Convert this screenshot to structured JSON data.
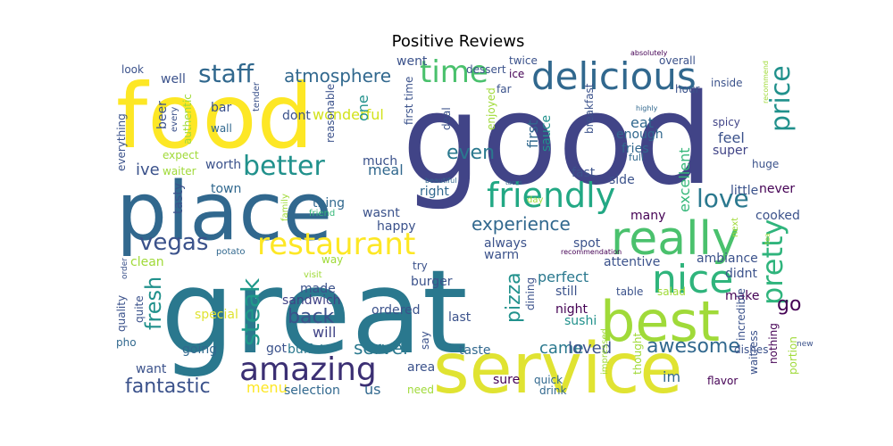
{
  "chart_data": {
    "type": "wordcloud",
    "title": "Positive Reviews",
    "words": [
      {
        "text": "good",
        "color": "#414487"
      },
      {
        "text": "great",
        "color": "#2a788e"
      },
      {
        "text": "food",
        "color": "#fde725"
      },
      {
        "text": "place",
        "color": "#31688e"
      },
      {
        "text": "service",
        "color": "#e0e332"
      },
      {
        "text": "best",
        "color": "#a0da39"
      },
      {
        "text": "really",
        "color": "#4ac16d"
      },
      {
        "text": "delicious",
        "color": "#31688e"
      },
      {
        "text": "friendly",
        "color": "#22a884"
      },
      {
        "text": "amazing",
        "color": "#3b2f73"
      },
      {
        "text": "restaurant",
        "color": "#fde725"
      },
      {
        "text": "time",
        "color": "#4ac16d"
      },
      {
        "text": "nice",
        "color": "#2fb47c"
      },
      {
        "text": "pretty",
        "color": "#2fb47c"
      },
      {
        "text": "price",
        "color": "#21918c"
      },
      {
        "text": "better",
        "color": "#21918c"
      },
      {
        "text": "staff",
        "color": "#31688e"
      },
      {
        "text": "fresh",
        "color": "#21918c"
      },
      {
        "text": "steak",
        "color": "#1f998a"
      },
      {
        "text": "vegas",
        "color": "#3b528b"
      },
      {
        "text": "love",
        "color": "#2a788e"
      },
      {
        "text": "experience",
        "color": "#31688e"
      },
      {
        "text": "fantastic",
        "color": "#3b528b"
      },
      {
        "text": "awesome",
        "color": "#31688e"
      },
      {
        "text": "even",
        "color": "#2a788e"
      },
      {
        "text": "back",
        "color": "#3b528b"
      },
      {
        "text": "server",
        "color": "#2a788e"
      },
      {
        "text": "pizza",
        "color": "#21918c"
      },
      {
        "text": "atmosphere",
        "color": "#31688e"
      },
      {
        "text": "go",
        "color": "#440154"
      },
      {
        "text": "ive",
        "color": "#3b528b"
      },
      {
        "text": "menu",
        "color": "#fde725"
      },
      {
        "text": "came",
        "color": "#2a788e"
      },
      {
        "text": "loved",
        "color": "#3b528b"
      },
      {
        "text": "will",
        "color": "#414487"
      },
      {
        "text": "us",
        "color": "#31688e"
      },
      {
        "text": "wonderful",
        "color": "#d2e21b"
      },
      {
        "text": "excellent",
        "color": "#35b779"
      },
      {
        "text": "perfect",
        "color": "#2a788e"
      },
      {
        "text": "eat",
        "color": "#31688e"
      },
      {
        "text": "feel",
        "color": "#3b528b"
      },
      {
        "text": "first",
        "color": "#31688e"
      },
      {
        "text": "sauce",
        "color": "#21918c"
      },
      {
        "text": "enough",
        "color": "#31688e"
      },
      {
        "text": "fries",
        "color": "#31688e"
      },
      {
        "text": "super",
        "color": "#414487"
      },
      {
        "text": "side",
        "color": "#3b528b"
      },
      {
        "text": "fast",
        "color": "#3b528b"
      },
      {
        "text": "meal",
        "color": "#31688e"
      },
      {
        "text": "much",
        "color": "#3b528b"
      },
      {
        "text": "worth",
        "color": "#3b528b"
      },
      {
        "text": "town",
        "color": "#31688e"
      },
      {
        "text": "happy",
        "color": "#3b528b"
      },
      {
        "text": "always",
        "color": "#3b528b"
      },
      {
        "text": "spot",
        "color": "#3b528b"
      },
      {
        "text": "warm",
        "color": "#3b528b"
      },
      {
        "text": "right",
        "color": "#31688e"
      },
      {
        "text": "thing",
        "color": "#31688e"
      },
      {
        "text": "wasnt",
        "color": "#3b528b"
      },
      {
        "text": "made",
        "color": "#3b528b"
      },
      {
        "text": "sandwich",
        "color": "#414487"
      },
      {
        "text": "burger",
        "color": "#3b528b"
      },
      {
        "text": "ordered",
        "color": "#3b528b"
      },
      {
        "text": "little",
        "color": "#3b528b"
      },
      {
        "text": "never",
        "color": "#440154"
      },
      {
        "text": "cooked",
        "color": "#3b528b"
      },
      {
        "text": "many",
        "color": "#440154"
      },
      {
        "text": "ambiance",
        "color": "#3b528b"
      },
      {
        "text": "attentive",
        "color": "#3b528b"
      },
      {
        "text": "didnt",
        "color": "#3b528b"
      },
      {
        "text": "make",
        "color": "#440154"
      },
      {
        "text": "night",
        "color": "#440154"
      },
      {
        "text": "sushi",
        "color": "#21918c"
      },
      {
        "text": "still",
        "color": "#3b528b"
      },
      {
        "text": "table",
        "color": "#3b528b"
      },
      {
        "text": "salad",
        "color": "#a0da39"
      },
      {
        "text": "dining",
        "color": "#3b528b"
      },
      {
        "text": "last",
        "color": "#3b528b"
      },
      {
        "text": "taste",
        "color": "#31688e"
      },
      {
        "text": "area",
        "color": "#3b528b"
      },
      {
        "text": "say",
        "color": "#3b528b"
      },
      {
        "text": "sure",
        "color": "#440154"
      },
      {
        "text": "quick",
        "color": "#31688e"
      },
      {
        "text": "drink",
        "color": "#31688e"
      },
      {
        "text": "im",
        "color": "#31688e"
      },
      {
        "text": "need",
        "color": "#a0da39"
      },
      {
        "text": "selection",
        "color": "#31688e"
      },
      {
        "text": "buffet",
        "color": "#2a788e"
      },
      {
        "text": "got",
        "color": "#3b528b"
      },
      {
        "text": "going",
        "color": "#31688e"
      },
      {
        "text": "special",
        "color": "#e0e332"
      },
      {
        "text": "want",
        "color": "#3b528b"
      },
      {
        "text": "pho",
        "color": "#31688e"
      },
      {
        "text": "quality",
        "color": "#3b528b"
      },
      {
        "text": "quite",
        "color": "#3b528b"
      },
      {
        "text": "order",
        "color": "#3b528b"
      },
      {
        "text": "potato",
        "color": "#31688e"
      },
      {
        "text": "clean",
        "color": "#a0da39"
      },
      {
        "text": "way",
        "color": "#a0da39"
      },
      {
        "text": "try",
        "color": "#3b528b"
      },
      {
        "text": "visit",
        "color": "#a0da39"
      },
      {
        "text": "friend",
        "color": "#35b779"
      },
      {
        "text": "family",
        "color": "#a0da39"
      },
      {
        "text": "tasty",
        "color": "#3b528b"
      },
      {
        "text": "everything",
        "color": "#3b528b"
      },
      {
        "text": "beer",
        "color": "#3b528b"
      },
      {
        "text": "authentic",
        "color": "#a0da39"
      },
      {
        "text": "expect",
        "color": "#a0da39"
      },
      {
        "text": "waiter",
        "color": "#a0da39"
      },
      {
        "text": "bar",
        "color": "#3b528b"
      },
      {
        "text": "wall",
        "color": "#31688e"
      },
      {
        "text": "dont",
        "color": "#3b528b"
      },
      {
        "text": "reasonable",
        "color": "#3b528b"
      },
      {
        "text": "tender",
        "color": "#3b528b"
      },
      {
        "text": "every",
        "color": "#3b528b"
      },
      {
        "text": "well",
        "color": "#3b528b"
      },
      {
        "text": "look",
        "color": "#3b528b"
      },
      {
        "text": "one",
        "color": "#21918c"
      },
      {
        "text": "went",
        "color": "#3b528b"
      },
      {
        "text": "first time",
        "color": "#3b528b"
      },
      {
        "text": "deal",
        "color": "#3b528b"
      },
      {
        "text": "enjoyed",
        "color": "#a0da39"
      },
      {
        "text": "dessert",
        "color": "#3b528b"
      },
      {
        "text": "twice",
        "color": "#3b528b"
      },
      {
        "text": "ice",
        "color": "#440154"
      },
      {
        "text": "far",
        "color": "#3b528b"
      },
      {
        "text": "breakfast",
        "color": "#3b528b"
      },
      {
        "text": "overall",
        "color": "#3b528b"
      },
      {
        "text": "inside",
        "color": "#3b528b"
      },
      {
        "text": "absolutely",
        "color": "#440154"
      },
      {
        "text": "highly",
        "color": "#31688e"
      },
      {
        "text": "hour",
        "color": "#3b528b"
      },
      {
        "text": "spicy",
        "color": "#414487"
      },
      {
        "text": "full",
        "color": "#31688e"
      },
      {
        "text": "huge",
        "color": "#3b528b"
      },
      {
        "text": "beautiful",
        "color": "#31688e"
      },
      {
        "text": "day",
        "color": "#a0da39"
      },
      {
        "text": "recommendation",
        "color": "#440154"
      },
      {
        "text": "next",
        "color": "#a0da39"
      },
      {
        "text": "tea",
        "color": "#a0da39"
      },
      {
        "text": "tacos",
        "color": "#31688e"
      },
      {
        "text": "incredible",
        "color": "#3b528b"
      },
      {
        "text": "waitress",
        "color": "#3b528b"
      },
      {
        "text": "nothing",
        "color": "#440154"
      },
      {
        "text": "new",
        "color": "#3b528b"
      },
      {
        "text": "portion",
        "color": "#a0da39"
      },
      {
        "text": "dishes",
        "color": "#3b528b"
      },
      {
        "text": "flavor",
        "color": "#440154"
      },
      {
        "text": "thought",
        "color": "#a0da39"
      },
      {
        "text": "impressed",
        "color": "#a0da39"
      },
      {
        "text": "recommend",
        "color": "#a0da39"
      }
    ]
  }
}
